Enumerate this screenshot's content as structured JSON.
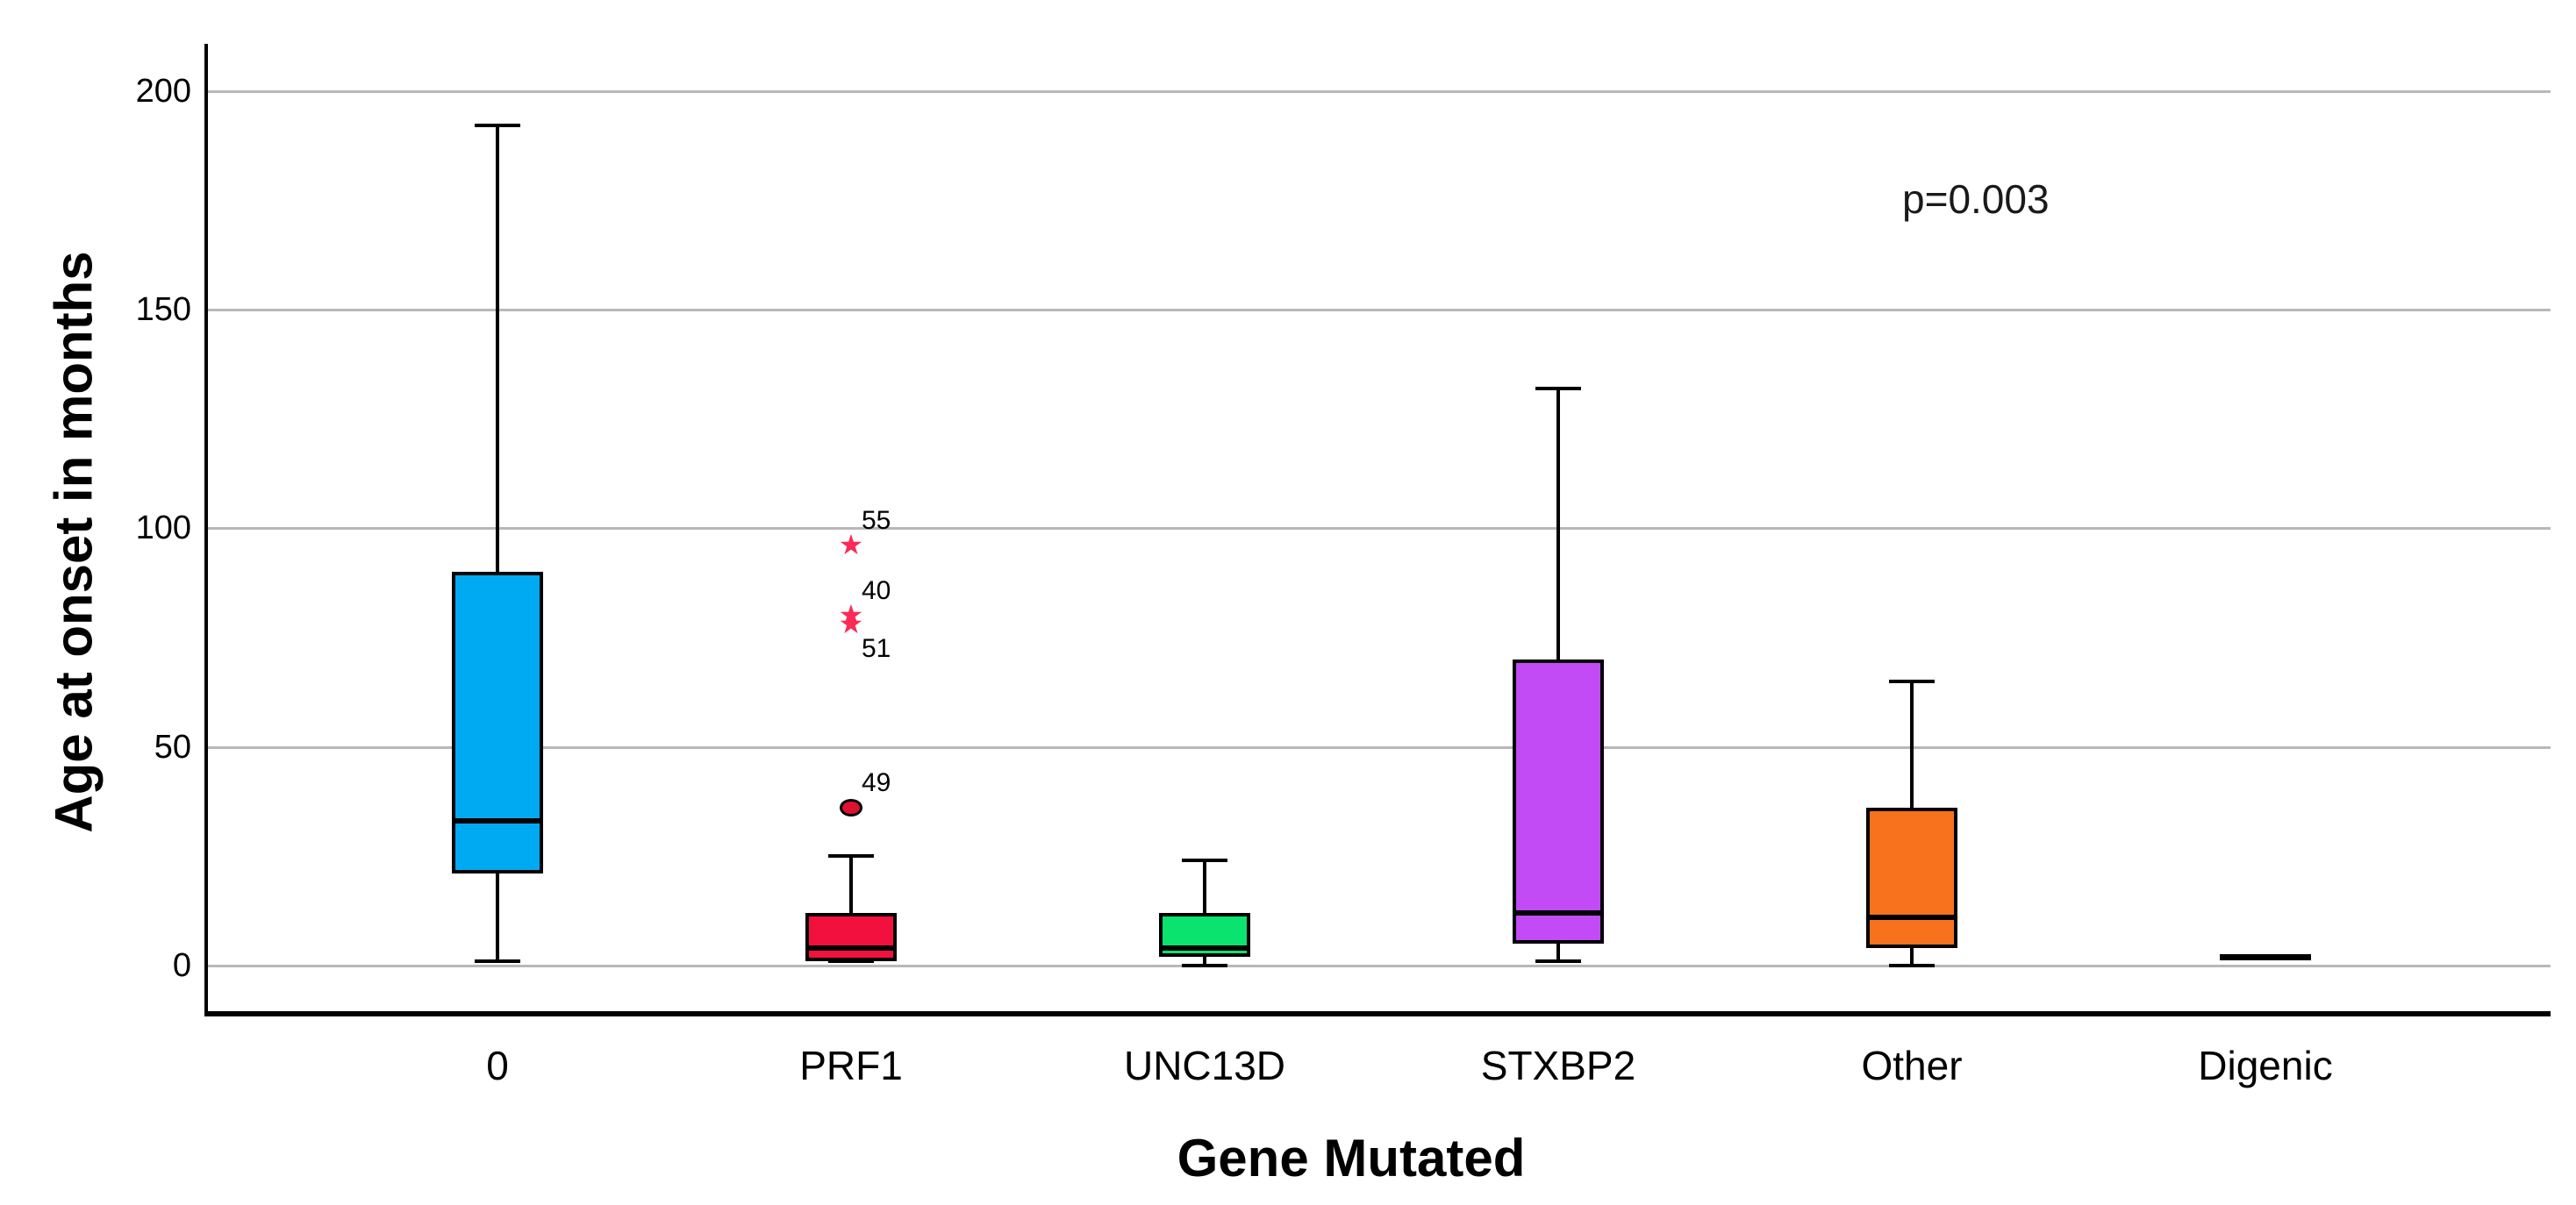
{
  "chart_data": {
    "type": "boxplot",
    "title": "",
    "xlabel": "Gene Mutated",
    "ylabel": "Age at onset in months",
    "annotation": "p=0.003",
    "ylim": [
      0,
      200
    ],
    "yticks": [
      0,
      50,
      100,
      150,
      200
    ],
    "grid": "horizontal",
    "legend": "none",
    "categories": [
      "0",
      "PRF1",
      "UNC13D",
      "STXBP2",
      "Other",
      "Digenic"
    ],
    "outlier_star_color": "#fb2b57",
    "outlier_circle_color": "#de1230",
    "boxes": [
      {
        "category": "0",
        "color": "#00aaf2",
        "whisker_low": 1,
        "q1": 21,
        "median": 33,
        "q3": 90,
        "whisker_high": 192,
        "outliers": []
      },
      {
        "category": "PRF1",
        "color": "#f2103e",
        "whisker_low": 1,
        "q1": 1,
        "median": 4,
        "q3": 12,
        "whisker_high": 25,
        "outliers": [
          {
            "value": 96,
            "marker": "star",
            "label": "55",
            "label_pos": "above-right"
          },
          {
            "value": 80,
            "marker": "star",
            "label": "40",
            "label_pos": "above-right"
          },
          {
            "value": 78,
            "marker": "star",
            "label": "51",
            "label_pos": "below-right"
          },
          {
            "value": 36,
            "marker": "circle",
            "label": "49",
            "label_pos": "above-right"
          }
        ]
      },
      {
        "category": "UNC13D",
        "color": "#0ae36e",
        "whisker_low": 0,
        "q1": 2,
        "median": 4,
        "q3": 12,
        "whisker_high": 24,
        "outliers": []
      },
      {
        "category": "STXBP2",
        "color": "#c24bf6",
        "whisker_low": 1,
        "q1": 5,
        "median": 12,
        "q3": 70,
        "whisker_high": 132,
        "outliers": []
      },
      {
        "category": "Other",
        "color": "#f8711c",
        "whisker_low": 0,
        "q1": 4,
        "median": 11,
        "q3": 36,
        "whisker_high": 65,
        "outliers": []
      },
      {
        "category": "Digenic",
        "color": "#000000",
        "median_only": true,
        "median": 2,
        "outliers": []
      }
    ]
  }
}
